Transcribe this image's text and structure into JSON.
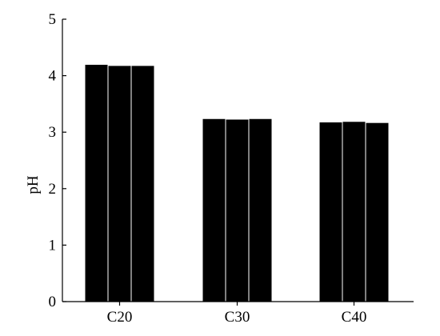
{
  "chart_data": {
    "type": "bar",
    "categories": [
      "C20",
      "C30",
      "C40"
    ],
    "series": [
      {
        "values": [
          4.2,
          3.24,
          3.18
        ]
      },
      {
        "values": [
          4.18,
          3.23,
          3.19
        ]
      },
      {
        "values": [
          4.18,
          3.24,
          3.17
        ]
      }
    ],
    "xlabel": "",
    "ylabel": "pH",
    "ylim": [
      0,
      5
    ],
    "yticks": [
      0,
      1,
      2,
      3,
      4,
      5
    ],
    "grid": false,
    "bar_color": "#000000",
    "bar_edge_color": "#ffffff"
  }
}
